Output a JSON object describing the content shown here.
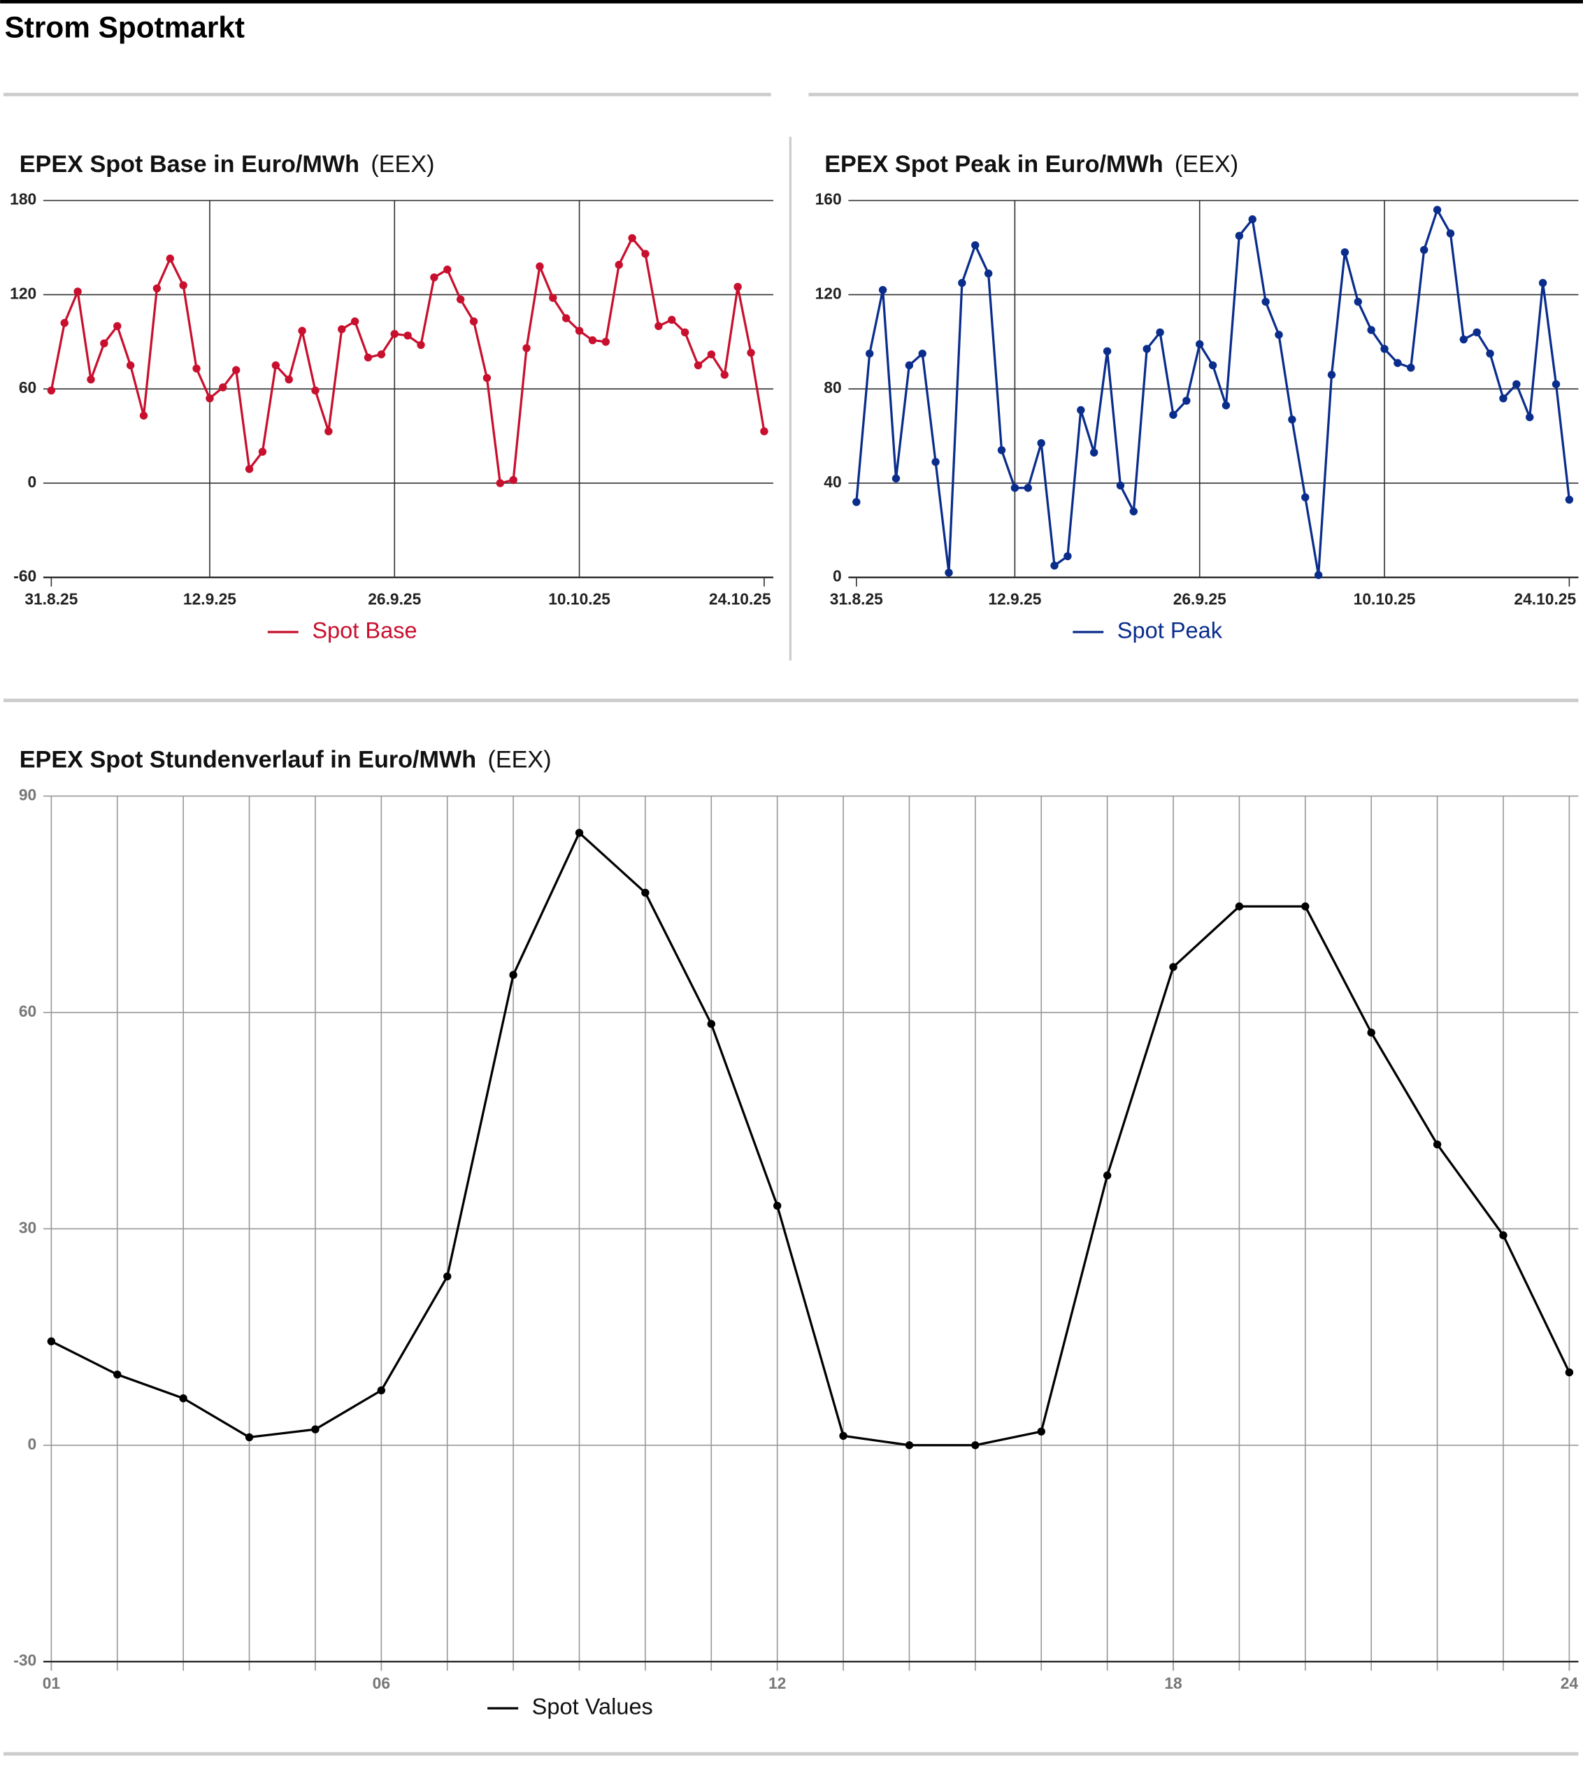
{
  "title": "Strom Spotmarkt",
  "chart_data": [
    {
      "type": "line",
      "title": "EPEX Spot Base in Euro/MWh",
      "source": "(EEX)",
      "x": [
        "2025-08-31",
        "2025-09-01",
        "2025-09-02",
        "2025-09-03",
        "2025-09-04",
        "2025-09-05",
        "2025-09-06",
        "2025-09-07",
        "2025-09-08",
        "2025-09-09",
        "2025-09-10",
        "2025-09-11",
        "2025-09-12",
        "2025-09-13",
        "2025-09-14",
        "2025-09-15",
        "2025-09-16",
        "2025-09-17",
        "2025-09-18",
        "2025-09-19",
        "2025-09-20",
        "2025-09-21",
        "2025-09-22",
        "2025-09-23",
        "2025-09-24",
        "2025-09-25",
        "2025-09-26",
        "2025-09-27",
        "2025-09-28",
        "2025-09-29",
        "2025-09-30",
        "2025-10-01",
        "2025-10-02",
        "2025-10-03",
        "2025-10-04",
        "2025-10-05",
        "2025-10-06",
        "2025-10-07",
        "2025-10-08",
        "2025-10-09",
        "2025-10-10",
        "2025-10-11",
        "2025-10-12",
        "2025-10-13",
        "2025-10-14",
        "2025-10-15",
        "2025-10-16",
        "2025-10-17",
        "2025-10-18",
        "2025-10-19",
        "2025-10-20",
        "2025-10-21",
        "2025-10-22",
        "2025-10-23",
        "2025-10-24"
      ],
      "xlim": [
        "2025-08-31",
        "2025-10-24"
      ],
      "xticks": [
        {
          "value": "2025-08-31",
          "label": "31.8.25"
        },
        {
          "value": "2025-09-12",
          "label": "12.9.25"
        },
        {
          "value": "2025-09-26",
          "label": "26.9.25"
        },
        {
          "value": "2025-10-10",
          "label": "10.10.25"
        },
        {
          "value": "2025-10-24",
          "label": "24.10.25"
        }
      ],
      "ylim": [
        -60,
        180
      ],
      "yticks": [
        -60,
        0,
        60,
        120,
        180
      ],
      "grid": true,
      "series": [
        {
          "name": "Spot Base",
          "color": "#c8102e",
          "values": [
            59,
            102,
            122,
            66,
            89,
            100,
            75,
            43,
            124,
            143,
            126,
            73,
            54,
            61,
            72,
            9,
            20,
            75,
            66,
            97,
            59,
            33,
            98,
            103,
            80,
            82,
            95,
            94,
            88,
            131,
            136,
            117,
            103,
            67,
            0,
            2,
            86,
            138,
            118,
            105,
            97,
            91,
            90,
            139,
            156,
            146,
            100,
            104,
            96,
            75,
            82,
            69,
            125,
            83,
            33
          ]
        }
      ]
    },
    {
      "type": "line",
      "title": "EPEX Spot Peak in Euro/MWh",
      "source": "(EEX)",
      "x": [
        "2025-08-31",
        "2025-09-01",
        "2025-09-02",
        "2025-09-03",
        "2025-09-04",
        "2025-09-05",
        "2025-09-06",
        "2025-09-07",
        "2025-09-08",
        "2025-09-09",
        "2025-09-10",
        "2025-09-11",
        "2025-09-12",
        "2025-09-13",
        "2025-09-14",
        "2025-09-15",
        "2025-09-16",
        "2025-09-17",
        "2025-09-18",
        "2025-09-19",
        "2025-09-20",
        "2025-09-21",
        "2025-09-22",
        "2025-09-23",
        "2025-09-24",
        "2025-09-25",
        "2025-09-26",
        "2025-09-27",
        "2025-09-28",
        "2025-09-29",
        "2025-09-30",
        "2025-10-01",
        "2025-10-02",
        "2025-10-03",
        "2025-10-04",
        "2025-10-05",
        "2025-10-06",
        "2025-10-07",
        "2025-10-08",
        "2025-10-09",
        "2025-10-10",
        "2025-10-11",
        "2025-10-12",
        "2025-10-13",
        "2025-10-14",
        "2025-10-15",
        "2025-10-16",
        "2025-10-17",
        "2025-10-18",
        "2025-10-19",
        "2025-10-20",
        "2025-10-21",
        "2025-10-22",
        "2025-10-23",
        "2025-10-24"
      ],
      "xlim": [
        "2025-08-31",
        "2025-10-24"
      ],
      "xticks": [
        {
          "value": "2025-08-31",
          "label": "31.8.25"
        },
        {
          "value": "2025-09-12",
          "label": "12.9.25"
        },
        {
          "value": "2025-09-26",
          "label": "26.9.25"
        },
        {
          "value": "2025-10-10",
          "label": "10.10.25"
        },
        {
          "value": "2025-10-24",
          "label": "24.10.25"
        }
      ],
      "ylim": [
        0,
        160
      ],
      "yticks": [
        0,
        40,
        80,
        120,
        160
      ],
      "grid": true,
      "series": [
        {
          "name": "Spot Peak",
          "color": "#0a2d8c",
          "values": [
            32,
            95,
            122,
            42,
            90,
            95,
            49,
            2,
            125,
            141,
            129,
            54,
            38,
            38,
            57,
            5,
            9,
            71,
            53,
            96,
            39,
            28,
            97,
            104,
            69,
            75,
            99,
            90,
            73,
            145,
            152,
            117,
            103,
            67,
            34,
            1,
            86,
            138,
            117,
            105,
            97,
            91,
            89,
            139,
            156,
            146,
            101,
            104,
            95,
            76,
            82,
            68,
            125,
            82,
            33
          ]
        }
      ]
    },
    {
      "type": "line",
      "title": "EPEX Spot Stundenverlauf in Euro/MWh",
      "source": "(EEX)",
      "x": [
        1,
        2,
        3,
        4,
        5,
        6,
        7,
        8,
        9,
        10,
        11,
        12,
        13,
        14,
        15,
        16,
        17,
        18,
        19,
        20,
        21,
        22,
        23,
        24
      ],
      "xlim": [
        1,
        24
      ],
      "xticks": [
        {
          "value": 1,
          "label": "01"
        },
        {
          "value": 6,
          "label": "06"
        },
        12,
        18,
        24
      ],
      "ylim": [
        -30,
        90
      ],
      "yticks": [
        -30,
        0,
        30,
        60,
        90
      ],
      "grid": true,
      "series": [
        {
          "name": "Spot Values",
          "color": "#000000",
          "values": [
            14.4,
            9.8,
            6.5,
            1.1,
            2.2,
            7.6,
            23.4,
            65.2,
            84.9,
            76.6,
            58.4,
            33.2,
            1.3,
            0,
            0,
            1.9,
            37.4,
            66.3,
            74.7,
            74.7,
            57.2,
            41.7,
            29.1,
            10.1
          ]
        }
      ]
    }
  ]
}
